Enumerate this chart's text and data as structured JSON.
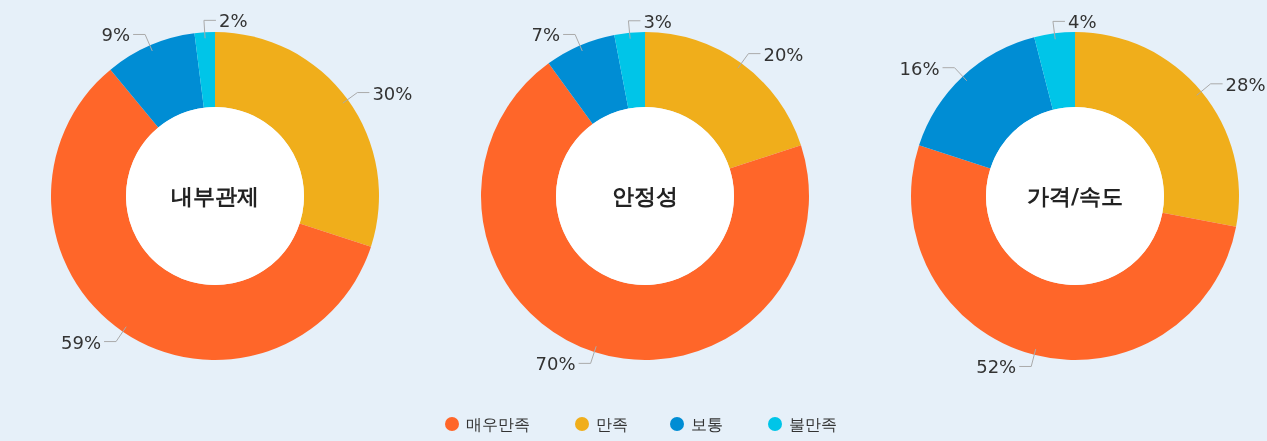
{
  "chart_data": [
    {
      "type": "donut",
      "title": "내부관제",
      "categories": [
        "만족",
        "매우만족",
        "보통",
        "불만족"
      ],
      "values": [
        30,
        59,
        9,
        2
      ],
      "value_labels": [
        "30%",
        "59%",
        "9%",
        "2%"
      ],
      "colors": [
        "#f0ae1b",
        "#ff6629",
        "#008dd4",
        "#00c5e8"
      ],
      "legend": "bottom"
    },
    {
      "type": "donut",
      "title": "안정성",
      "values": [
        20,
        70,
        7,
        3
      ],
      "value_labels": [
        "20%",
        "70%",
        "7%",
        "3%"
      ],
      "colors": [
        "#f0ae1b",
        "#ff6629",
        "#008dd4",
        "#00c5e8"
      ]
    },
    {
      "type": "donut",
      "title": "가격/속도",
      "values": [
        28,
        52,
        16,
        4
      ],
      "value_labels": [
        "28%",
        "52%",
        "16%",
        "4%"
      ],
      "colors": [
        "#f0ae1b",
        "#ff6629",
        "#008dd4",
        "#00c5e8"
      ]
    }
  ]
}
